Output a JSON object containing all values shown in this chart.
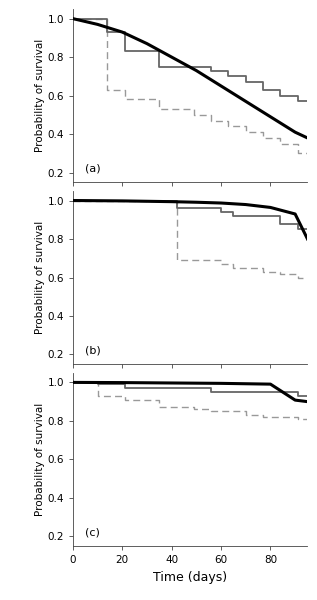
{
  "panels": [
    {
      "label": "(a)",
      "smooth_line": {
        "x": [
          0,
          10,
          20,
          30,
          40,
          50,
          60,
          70,
          80,
          90,
          95
        ],
        "y": [
          1.0,
          0.97,
          0.93,
          0.87,
          0.8,
          0.73,
          0.65,
          0.57,
          0.49,
          0.41,
          0.38
        ]
      },
      "step_upper": {
        "x": [
          0,
          14,
          14,
          21,
          21,
          35,
          35,
          56,
          56,
          63,
          63,
          70,
          70,
          77,
          77,
          84,
          84,
          91,
          91,
          95
        ],
        "y": [
          1.0,
          1.0,
          0.93,
          0.93,
          0.83,
          0.83,
          0.75,
          0.75,
          0.73,
          0.73,
          0.7,
          0.7,
          0.67,
          0.67,
          0.63,
          0.63,
          0.6,
          0.6,
          0.57,
          0.57
        ]
      },
      "step_lower_style": "dashed",
      "step_lower": {
        "x": [
          0,
          14,
          14,
          21,
          21,
          35,
          35,
          49,
          49,
          56,
          56,
          63,
          63,
          70,
          70,
          77,
          77,
          84,
          84,
          91,
          91,
          95
        ],
        "y": [
          1.0,
          1.0,
          0.63,
          0.63,
          0.58,
          0.58,
          0.53,
          0.53,
          0.5,
          0.5,
          0.47,
          0.47,
          0.44,
          0.44,
          0.41,
          0.41,
          0.38,
          0.38,
          0.35,
          0.35,
          0.3,
          0.3
        ]
      }
    },
    {
      "label": "(b)",
      "smooth_line": {
        "x": [
          0,
          10,
          20,
          30,
          40,
          50,
          60,
          70,
          80,
          90,
          95
        ],
        "y": [
          1.0,
          0.999,
          0.998,
          0.996,
          0.994,
          0.991,
          0.987,
          0.979,
          0.964,
          0.93,
          0.8
        ]
      },
      "step_upper": {
        "x": [
          0,
          42,
          42,
          60,
          60,
          65,
          65,
          84,
          84,
          91,
          91,
          95
        ],
        "y": [
          1.0,
          1.0,
          0.96,
          0.96,
          0.94,
          0.94,
          0.92,
          0.92,
          0.88,
          0.88,
          0.85,
          0.85
        ]
      },
      "step_lower_style": "dashed",
      "step_lower": {
        "x": [
          0,
          42,
          42,
          60,
          60,
          65,
          65,
          77,
          77,
          84,
          84,
          91,
          91,
          95
        ],
        "y": [
          1.0,
          1.0,
          0.69,
          0.69,
          0.67,
          0.67,
          0.65,
          0.65,
          0.63,
          0.63,
          0.62,
          0.62,
          0.6,
          0.6
        ]
      }
    },
    {
      "label": "(c)",
      "smooth_line": {
        "x": [
          0,
          10,
          20,
          30,
          40,
          50,
          60,
          70,
          80,
          90,
          95
        ],
        "y": [
          1.0,
          0.9995,
          0.999,
          0.998,
          0.997,
          0.996,
          0.995,
          0.993,
          0.991,
          0.908,
          0.9
        ]
      },
      "step_upper": {
        "x": [
          0,
          10,
          10,
          21,
          21,
          56,
          56,
          91,
          91,
          95
        ],
        "y": [
          1.0,
          1.0,
          0.99,
          0.99,
          0.97,
          0.97,
          0.95,
          0.95,
          0.93,
          0.93
        ]
      },
      "step_lower_style": "dashed",
      "step_lower": {
        "x": [
          0,
          10,
          10,
          21,
          21,
          35,
          35,
          49,
          49,
          56,
          56,
          70,
          70,
          77,
          77,
          91,
          91,
          95
        ],
        "y": [
          1.0,
          1.0,
          0.93,
          0.93,
          0.91,
          0.91,
          0.87,
          0.87,
          0.86,
          0.86,
          0.85,
          0.85,
          0.83,
          0.83,
          0.82,
          0.82,
          0.81,
          0.81
        ]
      }
    }
  ],
  "xlim": [
    0,
    95
  ],
  "ylim": [
    0.15,
    1.05
  ],
  "xticks": [
    0,
    20,
    40,
    60,
    80
  ],
  "yticks": [
    0.2,
    0.4,
    0.6,
    0.8,
    1.0
  ],
  "xlabel": "Time (days)",
  "ylabel": "Probability of survival",
  "smooth_color": "#000000",
  "step_upper_color": "#666666",
  "step_lower_color": "#999999",
  "smooth_lw": 2.2,
  "step_upper_lw": 1.3,
  "step_lower_lw": 1.0,
  "bg_color": "#ffffff",
  "fig_bg": "#ffffff"
}
